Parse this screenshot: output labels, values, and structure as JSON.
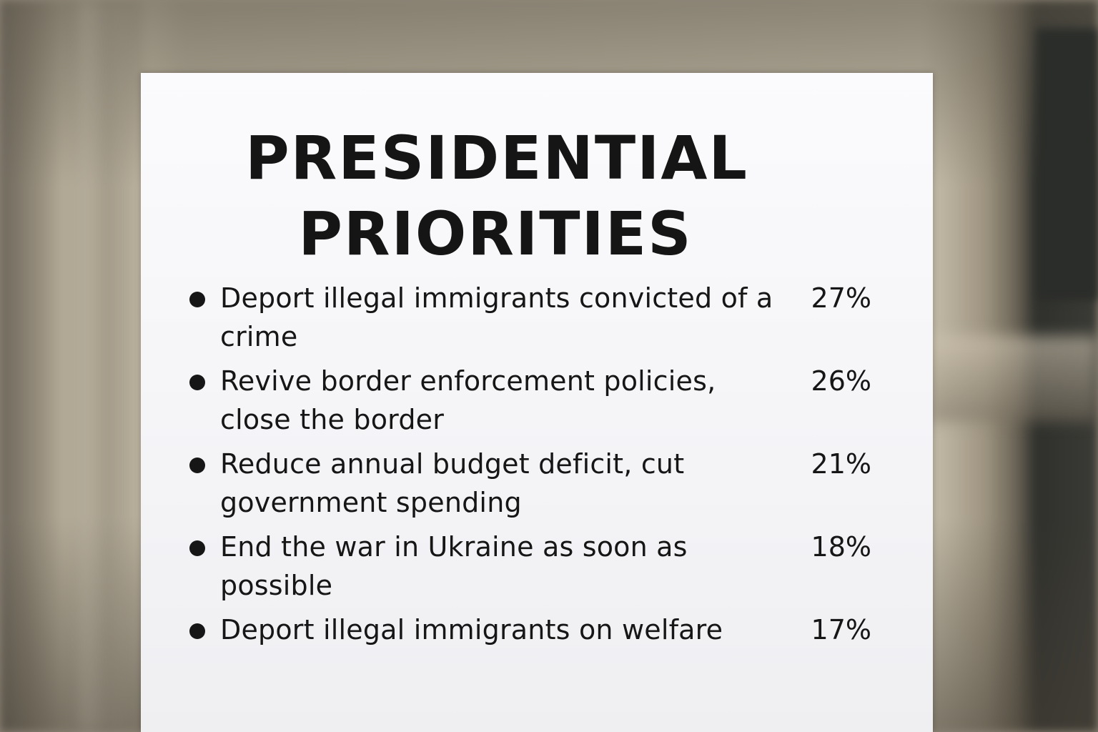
{
  "sign": {
    "title_line1": "PRESIDENTIAL",
    "title_line2": "PRIORITIES",
    "items": [
      {
        "text": "Deport illegal immigrants convicted of a crime",
        "value": "27%"
      },
      {
        "text": "Revive border enforcement policies, close the border",
        "value": "26%"
      },
      {
        "text": "Reduce annual budget deficit, cut government spending",
        "value": "21%"
      },
      {
        "text": "End the war in Ukraine as soon as possible",
        "value": "18%"
      },
      {
        "text": "Deport illegal immigrants on welfare",
        "value": "17%"
      }
    ]
  }
}
